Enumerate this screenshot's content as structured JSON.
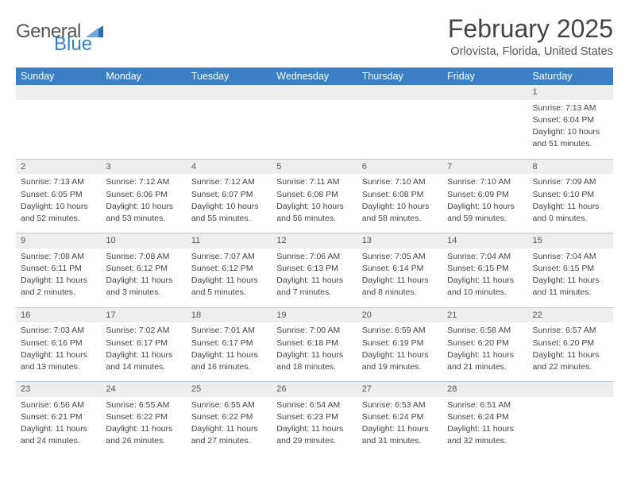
{
  "logo": {
    "text_general": "General",
    "text_blue": "Blue"
  },
  "title": "February 2025",
  "location": "Orlovista, Florida, United States",
  "colors": {
    "header_bg": "#3b7fc4",
    "header_fg": "#ffffff",
    "daynum_bg": "#eeeeee",
    "border": "#b8c4ce",
    "text": "#444444"
  },
  "day_names": [
    "Sunday",
    "Monday",
    "Tuesday",
    "Wednesday",
    "Thursday",
    "Friday",
    "Saturday"
  ],
  "weeks": [
    [
      null,
      null,
      null,
      null,
      null,
      null,
      {
        "n": "1",
        "sunrise": "Sunrise: 7:13 AM",
        "sunset": "Sunset: 6:04 PM",
        "day1": "Daylight: 10 hours",
        "day2": "and 51 minutes."
      }
    ],
    [
      {
        "n": "2",
        "sunrise": "Sunrise: 7:13 AM",
        "sunset": "Sunset: 6:05 PM",
        "day1": "Daylight: 10 hours",
        "day2": "and 52 minutes."
      },
      {
        "n": "3",
        "sunrise": "Sunrise: 7:12 AM",
        "sunset": "Sunset: 6:06 PM",
        "day1": "Daylight: 10 hours",
        "day2": "and 53 minutes."
      },
      {
        "n": "4",
        "sunrise": "Sunrise: 7:12 AM",
        "sunset": "Sunset: 6:07 PM",
        "day1": "Daylight: 10 hours",
        "day2": "and 55 minutes."
      },
      {
        "n": "5",
        "sunrise": "Sunrise: 7:11 AM",
        "sunset": "Sunset: 6:08 PM",
        "day1": "Daylight: 10 hours",
        "day2": "and 56 minutes."
      },
      {
        "n": "6",
        "sunrise": "Sunrise: 7:10 AM",
        "sunset": "Sunset: 6:08 PM",
        "day1": "Daylight: 10 hours",
        "day2": "and 58 minutes."
      },
      {
        "n": "7",
        "sunrise": "Sunrise: 7:10 AM",
        "sunset": "Sunset: 6:09 PM",
        "day1": "Daylight: 10 hours",
        "day2": "and 59 minutes."
      },
      {
        "n": "8",
        "sunrise": "Sunrise: 7:09 AM",
        "sunset": "Sunset: 6:10 PM",
        "day1": "Daylight: 11 hours",
        "day2": "and 0 minutes."
      }
    ],
    [
      {
        "n": "9",
        "sunrise": "Sunrise: 7:08 AM",
        "sunset": "Sunset: 6:11 PM",
        "day1": "Daylight: 11 hours",
        "day2": "and 2 minutes."
      },
      {
        "n": "10",
        "sunrise": "Sunrise: 7:08 AM",
        "sunset": "Sunset: 6:12 PM",
        "day1": "Daylight: 11 hours",
        "day2": "and 3 minutes."
      },
      {
        "n": "11",
        "sunrise": "Sunrise: 7:07 AM",
        "sunset": "Sunset: 6:12 PM",
        "day1": "Daylight: 11 hours",
        "day2": "and 5 minutes."
      },
      {
        "n": "12",
        "sunrise": "Sunrise: 7:06 AM",
        "sunset": "Sunset: 6:13 PM",
        "day1": "Daylight: 11 hours",
        "day2": "and 7 minutes."
      },
      {
        "n": "13",
        "sunrise": "Sunrise: 7:05 AM",
        "sunset": "Sunset: 6:14 PM",
        "day1": "Daylight: 11 hours",
        "day2": "and 8 minutes."
      },
      {
        "n": "14",
        "sunrise": "Sunrise: 7:04 AM",
        "sunset": "Sunset: 6:15 PM",
        "day1": "Daylight: 11 hours",
        "day2": "and 10 minutes."
      },
      {
        "n": "15",
        "sunrise": "Sunrise: 7:04 AM",
        "sunset": "Sunset: 6:15 PM",
        "day1": "Daylight: 11 hours",
        "day2": "and 11 minutes."
      }
    ],
    [
      {
        "n": "16",
        "sunrise": "Sunrise: 7:03 AM",
        "sunset": "Sunset: 6:16 PM",
        "day1": "Daylight: 11 hours",
        "day2": "and 13 minutes."
      },
      {
        "n": "17",
        "sunrise": "Sunrise: 7:02 AM",
        "sunset": "Sunset: 6:17 PM",
        "day1": "Daylight: 11 hours",
        "day2": "and 14 minutes."
      },
      {
        "n": "18",
        "sunrise": "Sunrise: 7:01 AM",
        "sunset": "Sunset: 6:17 PM",
        "day1": "Daylight: 11 hours",
        "day2": "and 16 minutes."
      },
      {
        "n": "19",
        "sunrise": "Sunrise: 7:00 AM",
        "sunset": "Sunset: 6:18 PM",
        "day1": "Daylight: 11 hours",
        "day2": "and 18 minutes."
      },
      {
        "n": "20",
        "sunrise": "Sunrise: 6:59 AM",
        "sunset": "Sunset: 6:19 PM",
        "day1": "Daylight: 11 hours",
        "day2": "and 19 minutes."
      },
      {
        "n": "21",
        "sunrise": "Sunrise: 6:58 AM",
        "sunset": "Sunset: 6:20 PM",
        "day1": "Daylight: 11 hours",
        "day2": "and 21 minutes."
      },
      {
        "n": "22",
        "sunrise": "Sunrise: 6:57 AM",
        "sunset": "Sunset: 6:20 PM",
        "day1": "Daylight: 11 hours",
        "day2": "and 22 minutes."
      }
    ],
    [
      {
        "n": "23",
        "sunrise": "Sunrise: 6:56 AM",
        "sunset": "Sunset: 6:21 PM",
        "day1": "Daylight: 11 hours",
        "day2": "and 24 minutes."
      },
      {
        "n": "24",
        "sunrise": "Sunrise: 6:55 AM",
        "sunset": "Sunset: 6:22 PM",
        "day1": "Daylight: 11 hours",
        "day2": "and 26 minutes."
      },
      {
        "n": "25",
        "sunrise": "Sunrise: 6:55 AM",
        "sunset": "Sunset: 6:22 PM",
        "day1": "Daylight: 11 hours",
        "day2": "and 27 minutes."
      },
      {
        "n": "26",
        "sunrise": "Sunrise: 6:54 AM",
        "sunset": "Sunset: 6:23 PM",
        "day1": "Daylight: 11 hours",
        "day2": "and 29 minutes."
      },
      {
        "n": "27",
        "sunrise": "Sunrise: 6:53 AM",
        "sunset": "Sunset: 6:24 PM",
        "day1": "Daylight: 11 hours",
        "day2": "and 31 minutes."
      },
      {
        "n": "28",
        "sunrise": "Sunrise: 6:51 AM",
        "sunset": "Sunset: 6:24 PM",
        "day1": "Daylight: 11 hours",
        "day2": "and 32 minutes."
      },
      null
    ]
  ]
}
